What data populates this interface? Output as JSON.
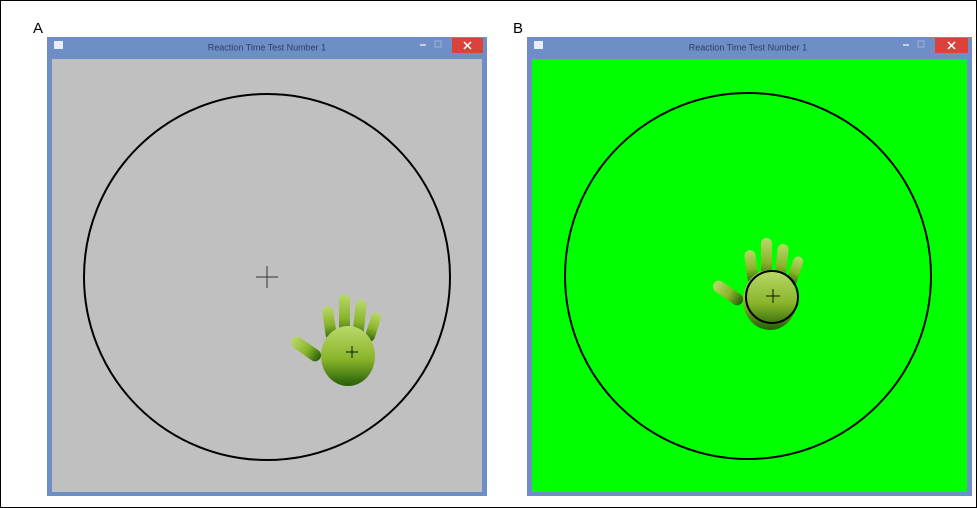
{
  "panels": [
    {
      "label": "A",
      "window_title": "Reaction Time Test Number 1"
    },
    {
      "label": "B",
      "window_title": "Reaction Time Test Number 1"
    }
  ]
}
